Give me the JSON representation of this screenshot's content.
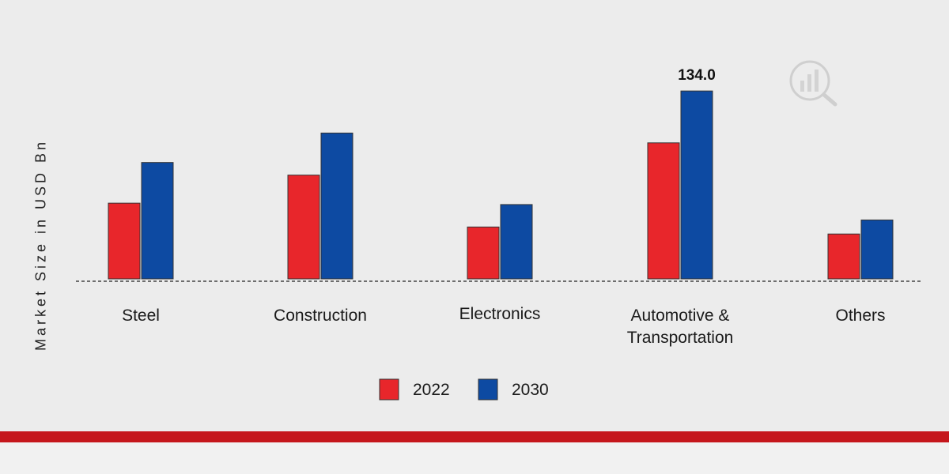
{
  "chart_data": {
    "type": "bar",
    "ylabel": "Market Size in USD Bn",
    "categories": [
      "Steel",
      "Construction",
      "Electronics",
      "Automotive & Transportation",
      "Others"
    ],
    "series": [
      {
        "name": "2022",
        "color": "#e8262b",
        "values": [
          54,
          74,
          37,
          97,
          32
        ]
      },
      {
        "name": "2030",
        "color": "#0d4aa2",
        "values": [
          83,
          104,
          53,
          134,
          42
        ]
      }
    ],
    "data_labels": [
      {
        "series": 1,
        "index": 3,
        "text": "134.0"
      }
    ],
    "ylim": [
      0,
      140
    ],
    "grid": false,
    "legend_position": "bottom"
  },
  "colors": {
    "background": "#ececec",
    "baseline": "#444444",
    "band": "#c5161c"
  },
  "icons": {
    "watermark": "chart-logo-icon"
  }
}
